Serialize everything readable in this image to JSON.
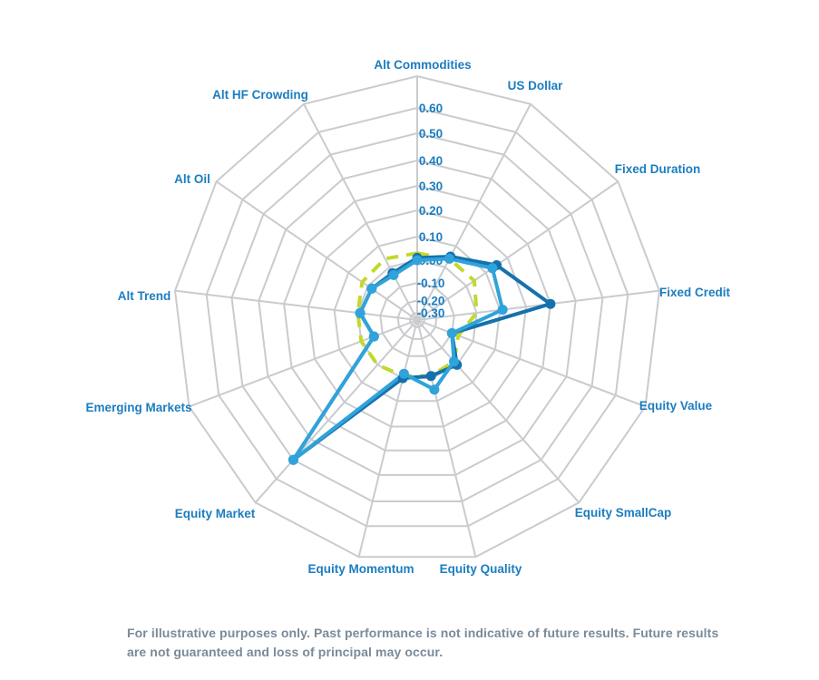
{
  "chart_data": {
    "type": "radar",
    "title": "",
    "categories": [
      "Alt Commodities",
      "US Dollar",
      "Fixed Duration",
      "Fixed Credit",
      "Equity Value",
      "Equity SmallCap",
      "Equity Quality",
      "Equity Momentum",
      "Equity Market",
      "Emerging Markets",
      "Alt Trend",
      "Alt Oil",
      "Alt HF Crowding"
    ],
    "series": [
      {
        "name": "dashed-yellow-reference",
        "style": "dashed",
        "color": "#c3d82c",
        "markers": false,
        "values": [
          0.03,
          0.04,
          0.04,
          0.0,
          -0.07,
          -0.02,
          -0.01,
          -0.01,
          0.0,
          0.0,
          0.0,
          0.03,
          0.04
        ]
      },
      {
        "name": "dark-blue",
        "style": "solid",
        "color": "#1571ae",
        "markers": true,
        "values": [
          0.01,
          0.05,
          0.15,
          0.3,
          -0.1,
          0.0,
          -0.01,
          0.0,
          0.5,
          -0.06,
          -0.01,
          -0.02,
          -0.03
        ]
      },
      {
        "name": "light-blue",
        "style": "solid",
        "color": "#30a3da",
        "markers": true,
        "values": [
          0.0,
          0.04,
          0.13,
          0.11,
          -0.1,
          -0.02,
          0.05,
          -0.02,
          0.5,
          -0.06,
          -0.01,
          -0.02,
          -0.04
        ]
      }
    ],
    "radial_axis": {
      "min": -0.4,
      "max": 0.7,
      "tick_labels": [
        "0.60",
        "0.50",
        "0.40",
        "0.30",
        "0.20",
        "0.10",
        "0.00",
        "-0.10",
        "-0.20",
        "-0.30"
      ],
      "tick_values": [
        0.6,
        0.5,
        0.4,
        0.3,
        0.2,
        0.1,
        0.0,
        -0.1,
        -0.2,
        -0.3
      ]
    },
    "legend": "none",
    "grid": true
  },
  "colors": {
    "axis_label": "#1b7dc0",
    "tick_label": "#1b7dc0",
    "grid": "#c9cbce",
    "background": "#ffffff",
    "footer_text": "#7a8a99"
  },
  "footer": {
    "disclaimer": "For illustrative purposes only. Past performance is not indicative of future results. Future results are not guaranteed and loss of principal may occur."
  }
}
